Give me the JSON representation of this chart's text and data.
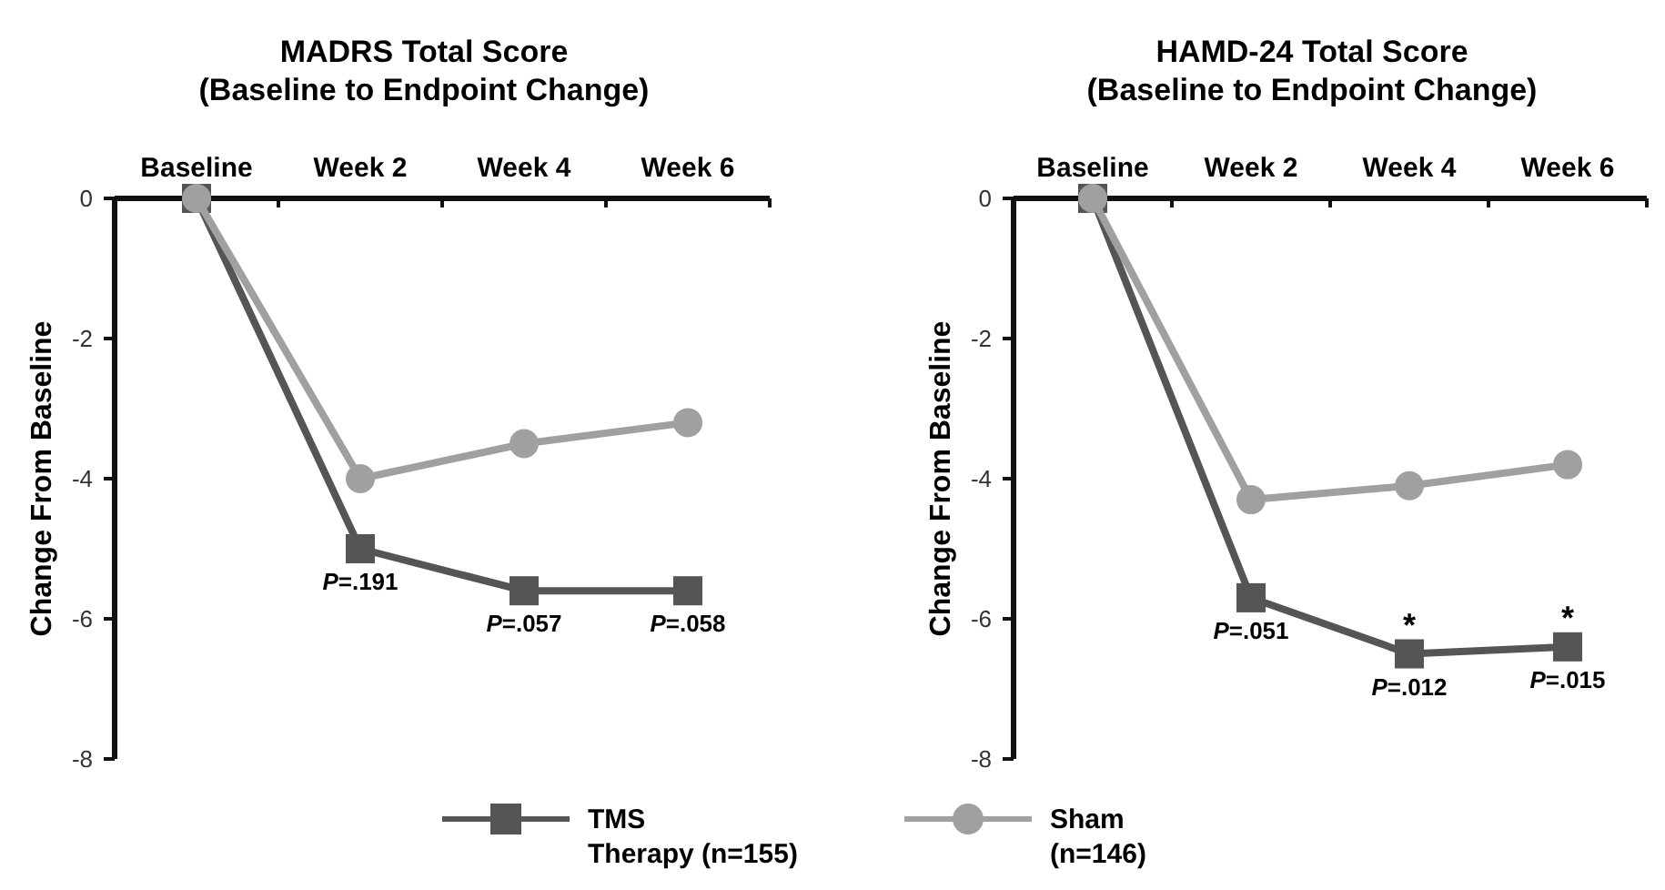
{
  "chart_data": [
    {
      "type": "line",
      "title": "MADRS Total Score\n(Baseline to Endpoint Change)",
      "ylabel": "Change From Baseline",
      "categories": [
        "Baseline",
        "Week 2",
        "Week 4",
        "Week 6"
      ],
      "ylim": [
        -8,
        0
      ],
      "yticks": [
        0,
        -2,
        -4,
        -6,
        -8
      ],
      "legend": "bottom",
      "series": [
        {
          "name": "TMS\nTherapy (n=155)",
          "color": "#555555",
          "marker": "square",
          "values": [
            0,
            -5,
            -5.6,
            -5.6
          ]
        },
        {
          "name": "Sham\n(n=146)",
          "color": "#a0a0a0",
          "marker": "circle",
          "values": [
            0,
            -4,
            -3.5,
            -3.2
          ]
        }
      ],
      "annotations": [
        {
          "text": "P=.191",
          "x": "Week 2",
          "y": -5
        },
        {
          "text": "P=.057",
          "x": "Week 4",
          "y": -5.6
        },
        {
          "text": "P=.058",
          "x": "Week 6",
          "y": -5.6
        }
      ]
    },
    {
      "type": "line",
      "title": "HAMD-24 Total Score\n(Baseline to Endpoint Change)",
      "ylabel": "Change From Baseline",
      "categories": [
        "Baseline",
        "Week 2",
        "Week 4",
        "Week 6"
      ],
      "ylim": [
        -8,
        0
      ],
      "yticks": [
        0,
        -2,
        -4,
        -6,
        -8
      ],
      "series": [
        {
          "color": "#555555",
          "marker": "square",
          "values": [
            0,
            -5.7,
            -6.5,
            -6.4
          ]
        },
        {
          "color": "#a0a0a0",
          "marker": "circle",
          "values": [
            0,
            -4.3,
            -4.1,
            -3.8
          ]
        }
      ],
      "annotations": [
        {
          "text": "P=.051",
          "x": "Week 2",
          "y": -5.7
        },
        {
          "text": "P=.012",
          "x": "Week 4",
          "y": -6.5
        },
        {
          "text": "P=.015",
          "x": "Week 6",
          "y": -6.4
        },
        {
          "text": "*",
          "x": "Week 4",
          "y": -6.5
        },
        {
          "text": "*",
          "x": "Week 6",
          "y": -6.4
        }
      ]
    }
  ]
}
